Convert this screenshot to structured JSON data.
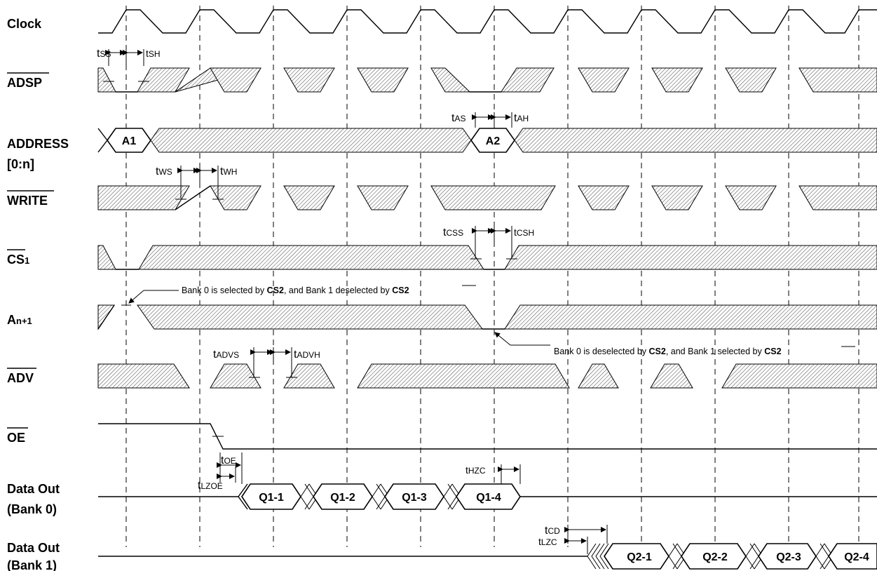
{
  "signals": {
    "clock": "Clock",
    "adsp": "ADSP",
    "address": "ADDRESS",
    "address_range": "[0:n]",
    "write": "WRITE",
    "cs1_base": "CS",
    "cs1_sub": "1",
    "an1_base": "A",
    "an1_sub": "n+1",
    "adv": "ADV",
    "oe": "OE",
    "data_out_bank0_l1": "Data Out",
    "data_out_bank0_l2": "(Bank 0)",
    "data_out_bank1_l1": "Data Out",
    "data_out_bank1_l2": "(Bank 1)"
  },
  "address_values": [
    "A1",
    "A2"
  ],
  "data_bank0": [
    "Q1-1",
    "Q1-2",
    "Q1-3",
    "Q1-4"
  ],
  "data_bank1": [
    "Q2-1",
    "Q2-2",
    "Q2-3",
    "Q2-4"
  ],
  "timing": {
    "tss": {
      "t": "t",
      "s": "SS"
    },
    "tsh": {
      "t": "t",
      "s": "SH"
    },
    "tas": {
      "t": "t",
      "s": "AS"
    },
    "tah": {
      "t": "t",
      "s": "AH"
    },
    "tws": {
      "t": "t",
      "s": "WS"
    },
    "twh": {
      "t": "t",
      "s": "WH"
    },
    "tcss": {
      "t": "t",
      "s": "CSS"
    },
    "tcsh": {
      "t": "t",
      "s": "CSH"
    },
    "tadvs": {
      "t": "t",
      "s": "ADVS"
    },
    "tadvh": {
      "t": "t",
      "s": "ADVH"
    },
    "toe": {
      "t": "t",
      "s": "OE"
    },
    "tlzoe": {
      "t": "t",
      "s": "LZOE"
    },
    "thzc": {
      "t": "t",
      "s": "HZC"
    },
    "tcd": {
      "t": "t",
      "s": "CD"
    },
    "tlzc": {
      "t": "t",
      "s": "LZC"
    }
  },
  "notes": {
    "bank_select": {
      "a": "Bank 0 is selected by ",
      "b": "CS",
      "c": "2",
      "d": ", and Bank 1 deselected by ",
      "e": "CS",
      "f": "2"
    },
    "bank_deselect": {
      "a": "Bank 0 is deselected by ",
      "b": "CS",
      "c": "2",
      "d": ", and Bank 1 selected by ",
      "e": "CS",
      "f": "2"
    }
  }
}
